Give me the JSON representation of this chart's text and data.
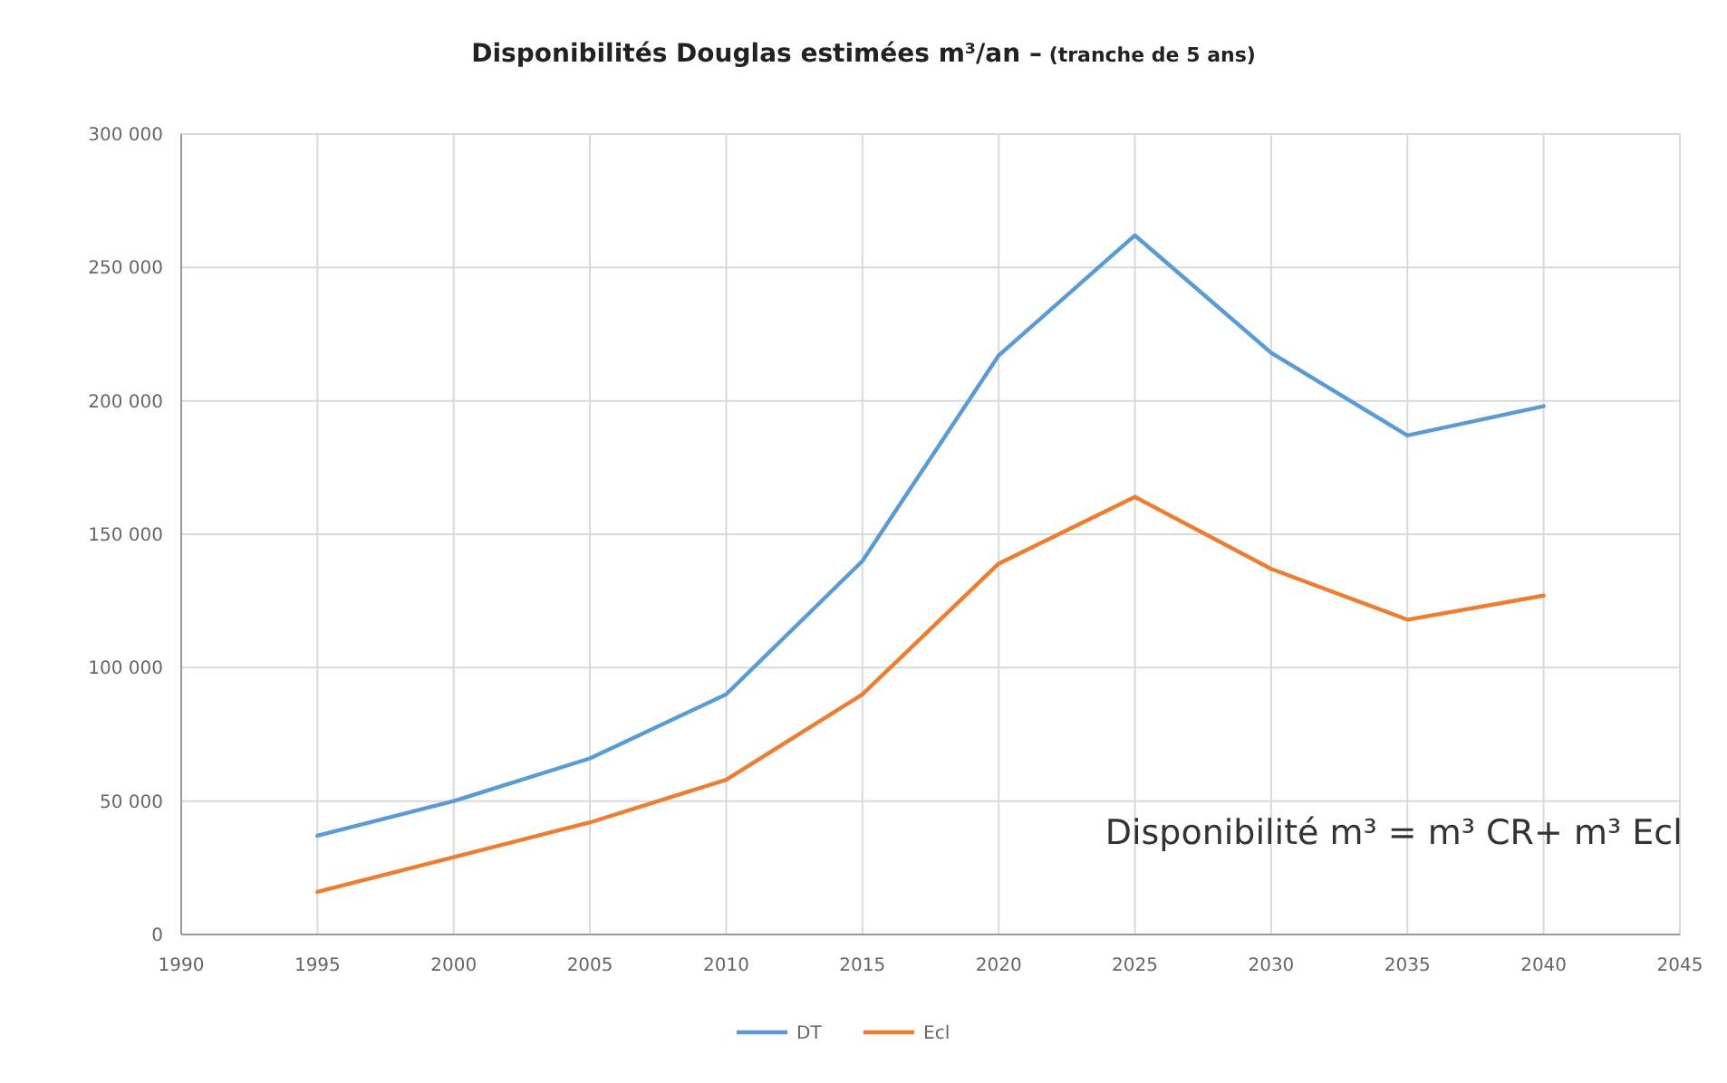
{
  "chart_data": {
    "type": "line",
    "title": "Disponibilités Douglas estimées m³/an –",
    "subtitle": "(tranche de 5 ans)",
    "x": [
      1995,
      2000,
      2005,
      2010,
      2015,
      2020,
      2025,
      2030,
      2035,
      2040
    ],
    "series": [
      {
        "name": "DT",
        "color": "#5b9bd5",
        "values": [
          37000,
          50000,
          66000,
          90000,
          140000,
          217000,
          262000,
          218000,
          187000,
          198000
        ]
      },
      {
        "name": "Ecl",
        "color": "#ed7d31",
        "values": [
          16000,
          29000,
          42000,
          58000,
          90000,
          139000,
          164000,
          137000,
          118000,
          127000
        ]
      }
    ],
    "xlim": [
      1990,
      2045
    ],
    "xticks": [
      1990,
      1995,
      2000,
      2005,
      2010,
      2015,
      2020,
      2025,
      2030,
      2035,
      2040,
      2045
    ],
    "ylim": [
      0,
      300000
    ],
    "yticks": [
      0,
      {
        "value": 50000,
        "label": "50 000"
      },
      {
        "value": 100000,
        "label": "100 000"
      },
      {
        "value": 150000,
        "label": "150 000"
      },
      {
        "value": 200000,
        "label": "200 000"
      },
      {
        "value": 250000,
        "label": "250 000"
      },
      {
        "value": 300000,
        "label": "300 000"
      }
    ],
    "grid": true,
    "legend": "bottom",
    "marker": "none",
    "line_style": "solid",
    "annotations": [
      "Disponibilité m³ = m³ CR+ m³ Ecl"
    ]
  }
}
